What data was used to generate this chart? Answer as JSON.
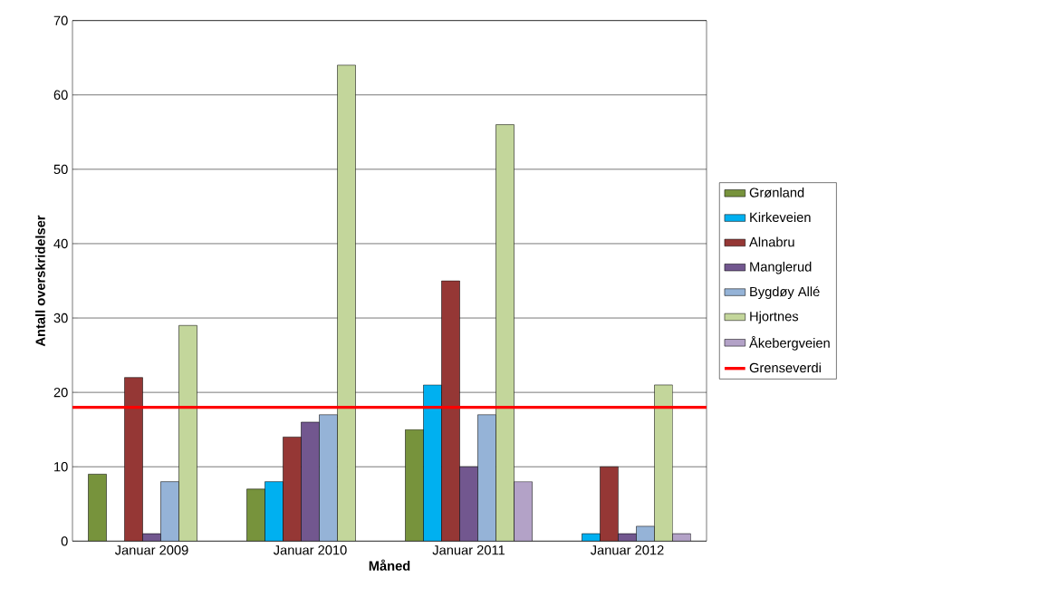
{
  "chart_data": {
    "type": "bar",
    "xlabel": "Måned",
    "ylabel": "Antall overskridelser",
    "categories": [
      "Januar 2009",
      "Januar 2010",
      "Januar 2011",
      "Januar 2012"
    ],
    "series": [
      {
        "name": "Grønland",
        "color": "#77933c",
        "values": [
          9,
          7,
          15,
          null
        ]
      },
      {
        "name": "Kirkeveien",
        "color": "#00b0f0",
        "values": [
          null,
          8,
          21,
          1
        ]
      },
      {
        "name": "Alnabru",
        "color": "#953735",
        "values": [
          22,
          14,
          35,
          10
        ]
      },
      {
        "name": "Manglerud",
        "color": "#72578f",
        "values": [
          1,
          16,
          10,
          1
        ]
      },
      {
        "name": "Bygdøy Allé",
        "color": "#95b3d7",
        "values": [
          8,
          17,
          17,
          2
        ]
      },
      {
        "name": "Hjortnes",
        "color": "#c3d69b",
        "values": [
          29,
          64,
          56,
          21
        ]
      },
      {
        "name": "Åkebergveien",
        "color": "#b3a2c7",
        "values": [
          null,
          null,
          8,
          1
        ]
      }
    ],
    "ylim": [
      0,
      70
    ],
    "yticks": [
      0,
      10,
      20,
      30,
      40,
      50,
      60,
      70
    ],
    "grid": "y",
    "legend": "right",
    "ref_lines": [
      {
        "axis": "y",
        "value": 18,
        "label": "Grenseverdi",
        "color": "#ff0000"
      }
    ]
  }
}
